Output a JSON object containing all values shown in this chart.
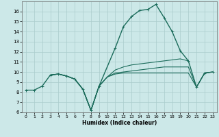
{
  "xlabel": "Humidex (Indice chaleur)",
  "xlim": [
    -0.5,
    23.5
  ],
  "ylim": [
    6,
    17
  ],
  "yticks": [
    6,
    7,
    8,
    9,
    10,
    11,
    12,
    13,
    14,
    15,
    16
  ],
  "xticks": [
    0,
    1,
    2,
    3,
    4,
    5,
    6,
    7,
    8,
    9,
    10,
    11,
    12,
    13,
    14,
    15,
    16,
    17,
    18,
    19,
    20,
    21,
    22,
    23
  ],
  "background_color": "#cce8e8",
  "grid_color": "#aacccc",
  "line_color": "#1a6b5a",
  "lines": [
    {
      "x": [
        0,
        1,
        2,
        3,
        4,
        5,
        6,
        7,
        8,
        9,
        11,
        12,
        13,
        14,
        15,
        16,
        17,
        18,
        19,
        20,
        21,
        22,
        23
      ],
      "y": [
        8.2,
        8.2,
        8.6,
        9.7,
        9.8,
        9.6,
        9.3,
        8.3,
        6.2,
        8.6,
        12.4,
        14.5,
        15.5,
        16.1,
        16.2,
        16.7,
        15.4,
        14.0,
        12.1,
        11.1,
        8.5,
        9.9,
        10.0
      ],
      "marker": "+",
      "markersize": 3.5,
      "linewidth": 1.0
    },
    {
      "x": [
        3,
        4,
        5,
        6,
        7,
        8,
        9,
        10,
        11,
        12,
        13,
        14,
        15,
        16,
        17,
        18,
        19,
        20
      ],
      "y": [
        9.7,
        9.8,
        9.6,
        9.3,
        8.3,
        6.2,
        8.6,
        9.5,
        10.2,
        10.5,
        10.7,
        10.8,
        10.9,
        11.0,
        11.1,
        11.2,
        11.3,
        11.1
      ],
      "marker": null,
      "linewidth": 0.8
    },
    {
      "x": [
        3,
        4,
        5,
        6,
        7,
        8,
        9,
        10,
        11,
        12,
        13,
        14,
        15,
        16,
        17,
        18,
        19,
        20,
        21,
        22,
        23
      ],
      "y": [
        9.7,
        9.8,
        9.6,
        9.3,
        8.3,
        6.2,
        8.6,
        9.5,
        9.9,
        10.0,
        10.1,
        10.2,
        10.3,
        10.4,
        10.5,
        10.5,
        10.5,
        10.5,
        8.5,
        9.9,
        10.0
      ],
      "marker": null,
      "linewidth": 0.8
    },
    {
      "x": [
        3,
        4,
        5,
        6,
        7,
        8,
        9,
        10,
        11,
        12,
        13,
        14,
        15,
        16,
        17,
        18,
        19,
        20,
        21,
        22,
        23
      ],
      "y": [
        9.7,
        9.8,
        9.6,
        9.3,
        8.3,
        6.2,
        8.6,
        9.5,
        9.8,
        9.9,
        9.9,
        9.9,
        9.9,
        9.9,
        9.9,
        9.9,
        9.9,
        9.9,
        8.5,
        9.9,
        10.0
      ],
      "marker": null,
      "linewidth": 0.8
    }
  ]
}
